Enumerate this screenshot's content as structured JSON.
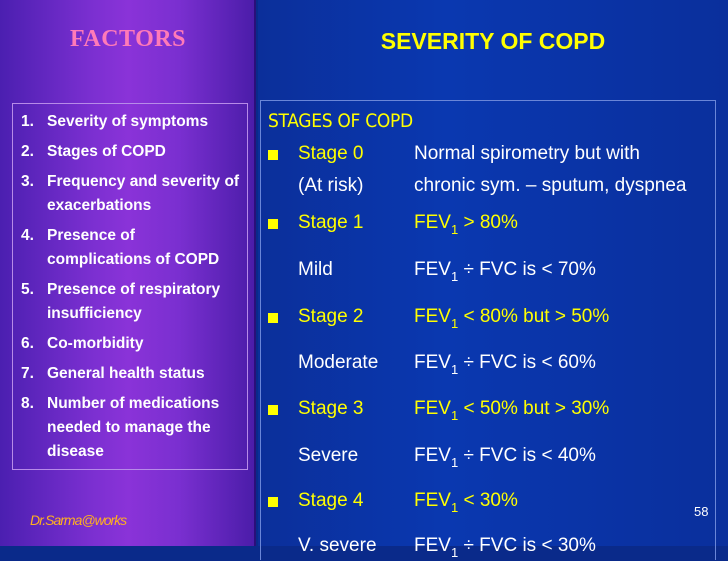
{
  "left": {
    "title": "FACTORS",
    "items": [
      {
        "num": "1.",
        "text": "Severity of symptoms"
      },
      {
        "num": "2.",
        "text": "Stages of COPD"
      },
      {
        "num": "3.",
        "text": "Frequency and severity of exacerbations"
      },
      {
        "num": "4.",
        "text": "Presence of complications of COPD"
      },
      {
        "num": "5.",
        "text": "Presence of respiratory insufficiency"
      },
      {
        "num": "6.",
        "text": "Co-morbidity"
      },
      {
        "num": "7.",
        "text": "General health status"
      },
      {
        "num": "8.",
        "text": "Number of medications needed to manage the disease"
      }
    ],
    "footer": "Dr.Sarma@works"
  },
  "right": {
    "title": "SEVERITY OF COPD",
    "heading": "STAGES OF COPD",
    "rows": [
      {
        "c1": "Stage 0",
        "c2": "Normal spirometry but with"
      },
      {
        "c1": "(At risk)",
        "c2": "chronic sym. – sputum, dyspnea"
      },
      {
        "c1": "Stage 1",
        "c2a": "FEV",
        "sub": "1",
        "c2b": " > 80%"
      },
      {
        "c1": "Mild",
        "c2a": "FEV",
        "sub": "1",
        "c2b": " ÷ FVC is < 70%"
      },
      {
        "c1": "Stage 2",
        "c2a": "FEV",
        "sub": "1",
        "c2b": " < 80% but > 50%"
      },
      {
        "c1": "Moderate",
        "c2a": "FEV",
        "sub": "1",
        "c2b": " ÷  FVC is < 60%"
      },
      {
        "c1": "Stage 3",
        "c2a": "FEV",
        "sub": "1",
        "c2b": " < 50% but > 30%"
      },
      {
        "c1": "Severe",
        "c2a": "FEV",
        "sub": "1",
        "c2b": " ÷ FVC is < 40%"
      },
      {
        "c1": "Stage 4",
        "c2a": "FEV",
        "sub": "1",
        "c2b": " < 30%"
      },
      {
        "c1": "V. severe",
        "c2a": "FEV",
        "sub": "1",
        "c2b": " ÷ FVC is < 30%"
      }
    ],
    "page_number": "58"
  },
  "colors": {
    "accent_yellow": "#ffff00",
    "title_pink": "#ff7ab8",
    "footer_orange": "#ffb020"
  }
}
